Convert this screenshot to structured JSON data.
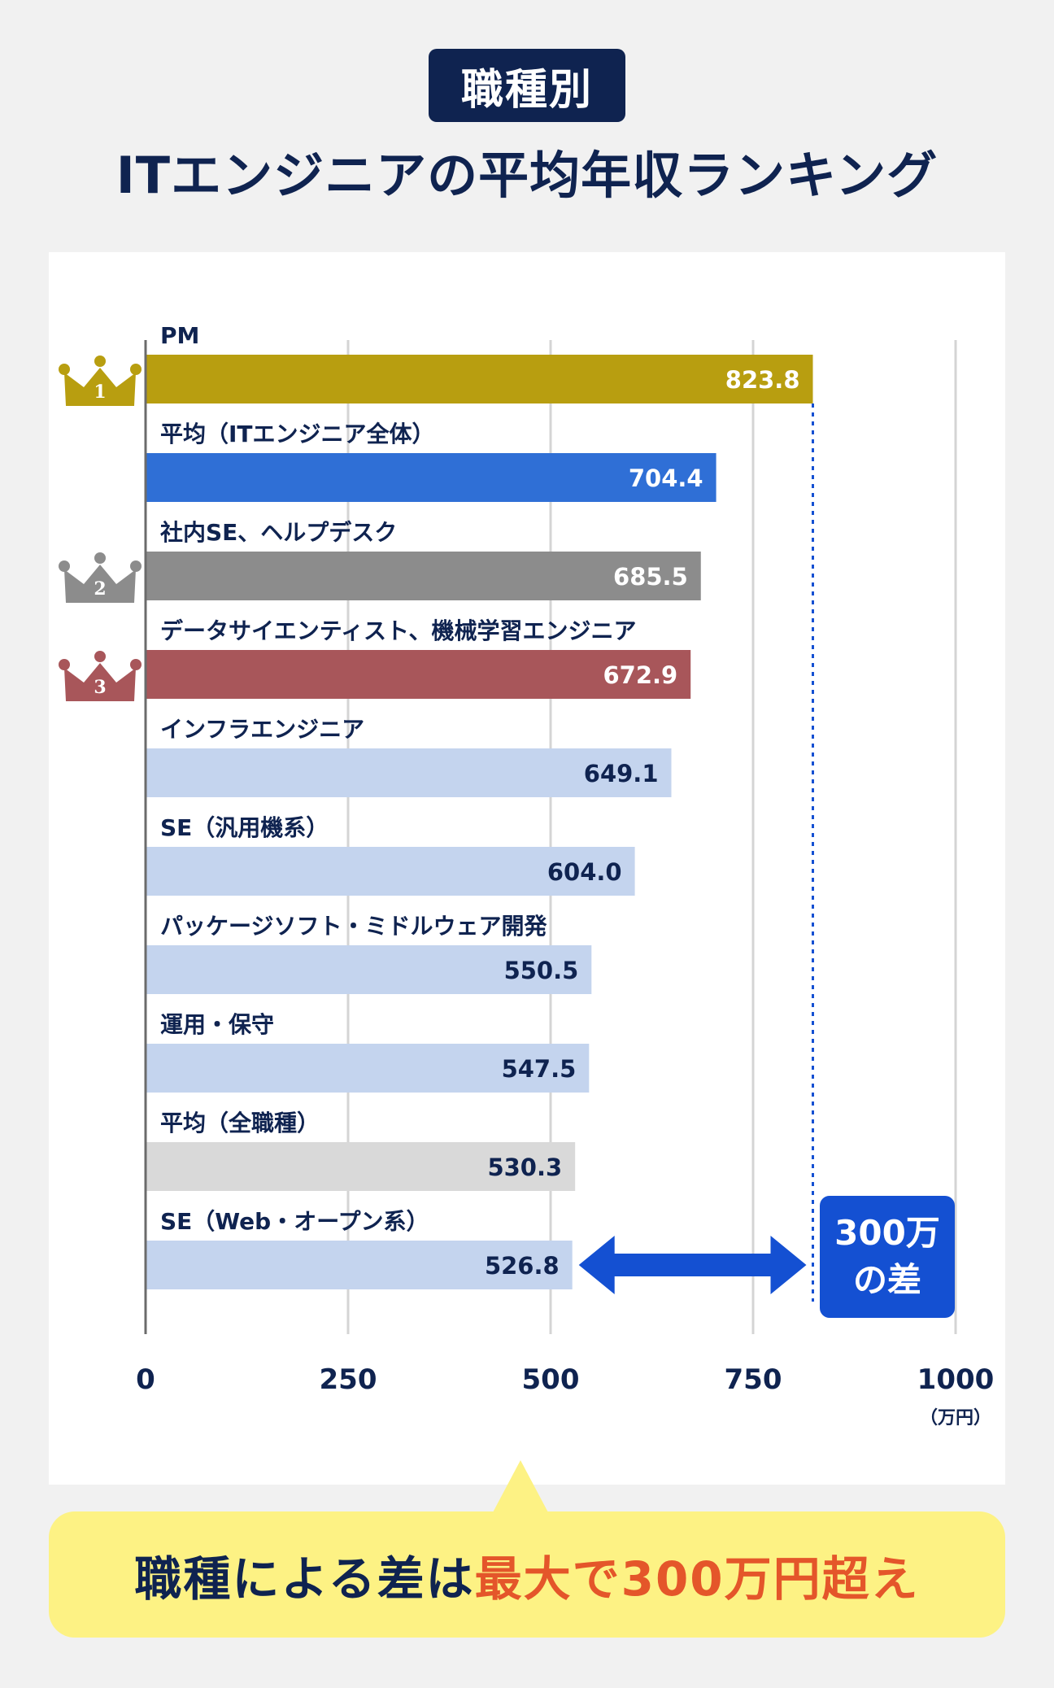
{
  "header": {
    "badge": "職種別",
    "title": "ITエンジニアの平均年収ランキング"
  },
  "chart_data": {
    "type": "bar",
    "orientation": "horizontal",
    "categories": [
      "PM",
      "平均（ITエンジニア全体）",
      "社内SE、ヘルプデスク",
      "データサイエンティスト、機械学習エンジニア",
      "インフラエンジニア",
      "SE（汎用機系）",
      "パッケージソフト・ミドルウェア開発",
      "運用・保守",
      "平均（全職種）",
      "SE（Web・オープン系）"
    ],
    "values": [
      823.8,
      704.4,
      685.5,
      672.9,
      649.1,
      604.0,
      550.5,
      547.5,
      530.3,
      526.8
    ],
    "value_labels": [
      "823.8",
      "704.4",
      "685.5",
      "672.9",
      "649.1",
      "604.0",
      "550.5",
      "547.5",
      "530.3",
      "526.8"
    ],
    "bar_colors": [
      "#b89e10",
      "#2f6fd6",
      "#8c8c8c",
      "#a8565a",
      "#c4d4ee",
      "#c4d4ee",
      "#c4d4ee",
      "#c4d4ee",
      "#d9d9d9",
      "#c4d4ee"
    ],
    "label_colors": [
      "#ffffff",
      "#ffffff",
      "#ffffff",
      "#ffffff",
      "#0f2350",
      "#0f2350",
      "#0f2350",
      "#0f2350",
      "#0f2350",
      "#0f2350"
    ],
    "rank_badges": [
      {
        "index": 0,
        "rank": "1",
        "color": "#b89e10"
      },
      {
        "index": 2,
        "rank": "2",
        "color": "#8c8c8c"
      },
      {
        "index": 3,
        "rank": "3",
        "color": "#a8565a"
      }
    ],
    "xlim": [
      0,
      1000
    ],
    "xticks": [
      "0",
      "250",
      "500",
      "750",
      "1000"
    ],
    "unit": "（万円）",
    "grid": true,
    "annotation": {
      "line1": "300万",
      "line2": "の差",
      "from_value": 526.8,
      "to_value": 823.8,
      "color": "#1450d2"
    }
  },
  "callout": {
    "part1": "職種による差は",
    "part2": "最大で300万円超え"
  },
  "colors": {
    "navy": "#0f2350",
    "accent_orange": "#e4562a",
    "callout_bg": "#fdf284",
    "arrow_blue": "#1450d2"
  }
}
